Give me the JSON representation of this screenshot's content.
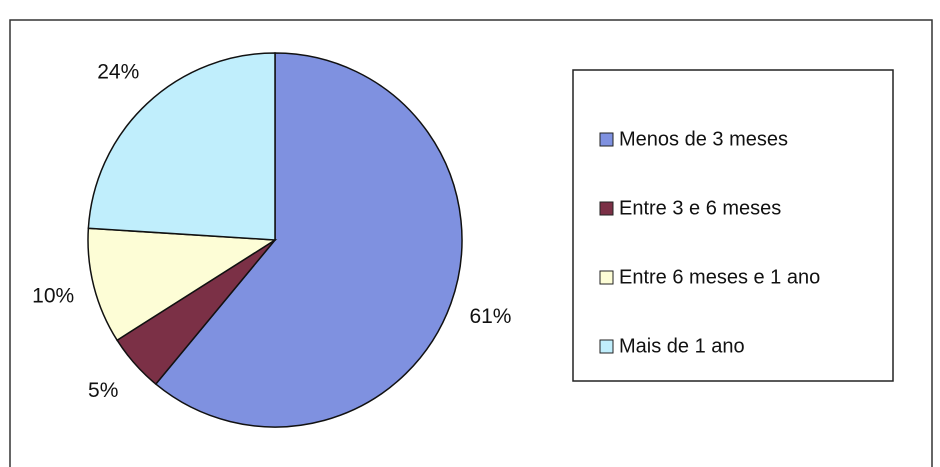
{
  "chart_data": {
    "type": "pie",
    "categories": [
      "Menos de 3 meses",
      "Entre 3 e 6 meses",
      "Entre 6 meses e 1 ano",
      "Mais de 1 ano"
    ],
    "values": [
      61,
      5,
      10,
      24
    ],
    "value_labels": [
      "61%",
      "5%",
      "10%",
      "24%"
    ],
    "colors": [
      "#7f91e0",
      "#7b3046",
      "#fdfdd6",
      "#c0eefc"
    ],
    "legend": "right"
  }
}
